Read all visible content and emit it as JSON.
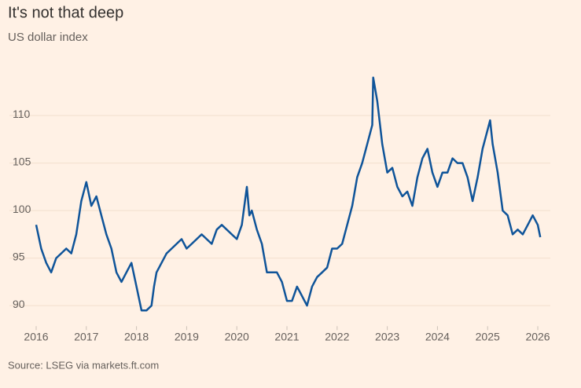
{
  "chart_data": {
    "type": "line",
    "title": "It's not that deep",
    "subtitle": "US dollar index",
    "source": "Source: LSEG via markets.ft.com",
    "x": [
      2016.0,
      2016.1,
      2016.2,
      2016.3,
      2016.4,
      2016.5,
      2016.6,
      2016.7,
      2016.8,
      2016.9,
      2017.0,
      2017.1,
      2017.2,
      2017.3,
      2017.4,
      2017.5,
      2017.6,
      2017.7,
      2017.8,
      2017.9,
      2018.0,
      2018.1,
      2018.2,
      2018.3,
      2018.35,
      2018.4,
      2018.5,
      2018.6,
      2018.8,
      2018.9,
      2019.0,
      2019.1,
      2019.3,
      2019.5,
      2019.6,
      2019.7,
      2019.9,
      2020.0,
      2020.1,
      2020.2,
      2020.25,
      2020.3,
      2020.4,
      2020.5,
      2020.6,
      2020.7,
      2020.8,
      2020.9,
      2021.0,
      2021.1,
      2021.2,
      2021.3,
      2021.4,
      2021.5,
      2021.6,
      2021.7,
      2021.8,
      2021.9,
      2022.0,
      2022.1,
      2022.2,
      2022.3,
      2022.4,
      2022.5,
      2022.6,
      2022.7,
      2022.72,
      2022.8,
      2022.9,
      2023.0,
      2023.1,
      2023.2,
      2023.3,
      2023.4,
      2023.5,
      2023.6,
      2023.7,
      2023.8,
      2023.9,
      2024.0,
      2024.1,
      2024.2,
      2024.3,
      2024.4,
      2024.5,
      2024.6,
      2024.7,
      2024.8,
      2024.9,
      2025.0,
      2025.05,
      2025.1,
      2025.2,
      2025.3,
      2025.4,
      2025.5,
      2025.6,
      2025.7,
      2025.8,
      2025.9,
      2026.0,
      2026.05
    ],
    "values": [
      98.5,
      96,
      94.5,
      93.5,
      95,
      95.5,
      96,
      95.5,
      97.5,
      101,
      103,
      100.5,
      101.5,
      99.5,
      97.5,
      96,
      93.5,
      92.5,
      93.5,
      94.5,
      92,
      89.5,
      89.5,
      90,
      92,
      93.5,
      94.5,
      95.5,
      96.5,
      97,
      96,
      96.5,
      97.5,
      96.5,
      98,
      98.5,
      97.5,
      97,
      98.5,
      102.5,
      99.5,
      100,
      98,
      96.5,
      93.5,
      93.5,
      93.5,
      92.5,
      90.5,
      90.5,
      92,
      91,
      90,
      92,
      93,
      93.5,
      94,
      96,
      96,
      96.5,
      98.5,
      100.5,
      103.5,
      105,
      107,
      109,
      114,
      111.5,
      107,
      104,
      104.5,
      102.5,
      101.5,
      102,
      100.5,
      103.5,
      105.5,
      106.5,
      104,
      102.5,
      104,
      104,
      105.5,
      105,
      105,
      103.5,
      101,
      103.5,
      106.5,
      108.5,
      109.5,
      107,
      104,
      100,
      99.5,
      97.5,
      98,
      97.5,
      98.5,
      99.5,
      98.5,
      97.2
    ],
    "color": "#0f5499",
    "xlim": [
      2016,
      2026.1
    ],
    "xticks": [
      2016,
      2017,
      2018,
      2019,
      2020,
      2021,
      2022,
      2023,
      2024,
      2025,
      2026
    ],
    "ylim": [
      88,
      115.5
    ],
    "yticks": [
      90,
      95,
      100,
      105,
      110
    ],
    "grid": true
  }
}
